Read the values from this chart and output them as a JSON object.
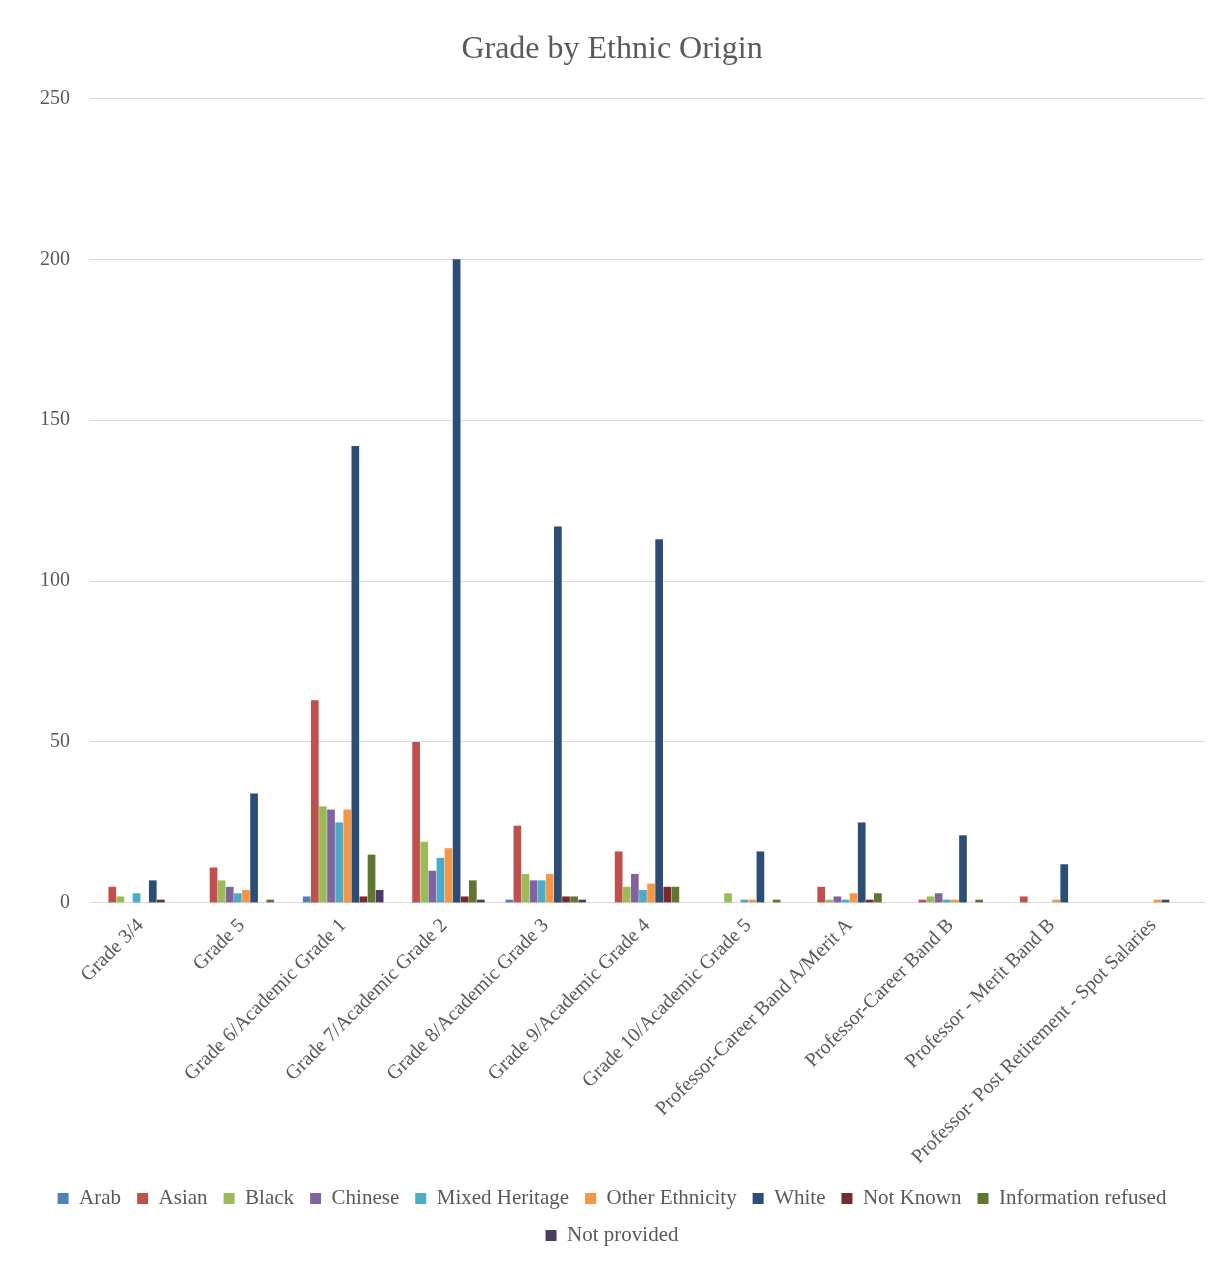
{
  "chart_data": {
    "type": "bar",
    "title": "Grade by Ethnic Origin",
    "categories": [
      "Grade 3/4",
      "Grade 5",
      "Grade 6/Academic Grade 1",
      "Grade 7/Academic Grade 2",
      "Grade 8/Academic Grade 3",
      "Grade 9/Academic Grade 4",
      "Grade 10/Academic Grade 5",
      "Professor-Career Band A/Merit A",
      "Professor-Career Band B",
      "Professor - Merit Band B",
      "Professor- Post Retirement - Spot Salaries"
    ],
    "series": [
      {
        "name": "Arab",
        "color": "#4f81bd",
        "values": [
          0,
          0,
          2,
          0,
          1,
          0,
          0,
          0,
          0,
          0,
          0
        ]
      },
      {
        "name": "Asian",
        "color": "#c0504d",
        "values": [
          5,
          11,
          63,
          50,
          24,
          16,
          0,
          5,
          1,
          2,
          0
        ]
      },
      {
        "name": "Black",
        "color": "#9bbb59",
        "values": [
          2,
          7,
          30,
          19,
          9,
          5,
          3,
          1,
          2,
          0,
          0
        ]
      },
      {
        "name": "Chinese",
        "color": "#8064a2",
        "values": [
          0,
          5,
          29,
          10,
          7,
          9,
          0,
          2,
          3,
          0,
          0
        ]
      },
      {
        "name": "Mixed Heritage",
        "color": "#4bacc6",
        "values": [
          3,
          3,
          25,
          14,
          7,
          4,
          1,
          1,
          1,
          0,
          0
        ]
      },
      {
        "name": "Other Ethnicity",
        "color": "#f79646",
        "values": [
          0,
          4,
          29,
          17,
          9,
          6,
          1,
          3,
          1,
          1,
          1
        ]
      },
      {
        "name": "White",
        "color": "#2c4d75",
        "values": [
          7,
          34,
          142,
          200,
          117,
          113,
          16,
          25,
          21,
          12,
          1
        ]
      },
      {
        "name": "Not Known",
        "color": "#772c2a",
        "values": [
          1,
          0,
          2,
          2,
          2,
          5,
          0,
          1,
          0,
          0,
          0
        ]
      },
      {
        "name": "Information refused",
        "color": "#5f7530",
        "values": [
          0,
          1,
          15,
          7,
          2,
          5,
          1,
          3,
          1,
          0,
          0
        ]
      },
      {
        "name": "Not provided",
        "color": "#4d3b62",
        "values": [
          0,
          0,
          4,
          1,
          1,
          0,
          0,
          0,
          0,
          0,
          0
        ]
      }
    ],
    "ylim": [
      0,
      250
    ],
    "yticks": [
      0,
      50,
      100,
      150,
      200,
      250
    ],
    "grid": "y",
    "legend": "bottom"
  }
}
